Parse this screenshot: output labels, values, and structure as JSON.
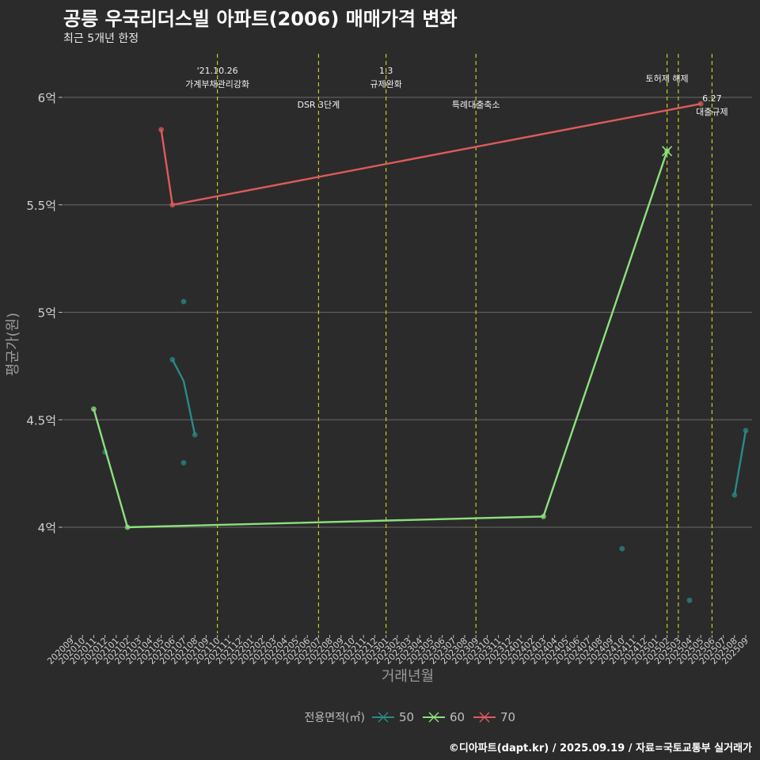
{
  "chart_data": {
    "type": "line",
    "title": "공릉 우국리더스빌 아파트(2006) 매매가격 변화",
    "subtitle": "최근 5개년 한정",
    "xlabel": "거래년월",
    "ylabel": "평균가(원)",
    "caption": "©디아파트(dapt.kr) / 2025.09.19 / 자료=국토교통부 실거래가",
    "legend_title": "전용면적(㎡)",
    "legend_position": "bottom",
    "y_range": [
      36500,
      62000
    ],
    "y_ticks": [
      {
        "value": 40000,
        "label": "4억"
      },
      {
        "value": 45000,
        "label": "4.5억"
      },
      {
        "value": 50000,
        "label": "5억"
      },
      {
        "value": 55000,
        "label": "5.5억"
      },
      {
        "value": 60000,
        "label": "6억"
      }
    ],
    "categories": [
      "202009",
      "202010",
      "202011",
      "202012",
      "202101",
      "202102",
      "202103",
      "202104",
      "202105",
      "202106",
      "202107",
      "202108",
      "202109",
      "202110",
      "202111",
      "202112",
      "202201",
      "202202",
      "202203",
      "202204",
      "202205",
      "202206",
      "202207",
      "202208",
      "202209",
      "202210",
      "202211",
      "202212",
      "202301",
      "202302",
      "202303",
      "202304",
      "202305",
      "202306",
      "202307",
      "202308",
      "202309",
      "202310",
      "202311",
      "202312",
      "202401",
      "202402",
      "202403",
      "202404",
      "202405",
      "202406",
      "202407",
      "202408",
      "202409",
      "202410",
      "202411",
      "202412",
      "202501",
      "202502",
      "202503",
      "202504",
      "202505",
      "202506",
      "202507",
      "202508",
      "202509"
    ],
    "series": [
      {
        "name": "50",
        "color": "#2a8a85",
        "lines": [
          [
            {
              "x": "202106",
              "y": 47800
            },
            {
              "x": "202107",
              "y": 46800
            },
            {
              "x": "202108",
              "y": 44300
            }
          ],
          [
            {
              "x": "202508",
              "y": 41500
            },
            {
              "x": "202509",
              "y": 44500
            }
          ]
        ],
        "points": [
          {
            "x": "202012",
            "y": 43500
          },
          {
            "x": "202106",
            "y": 47800
          },
          {
            "x": "202107",
            "y": 50500
          },
          {
            "x": "202107",
            "y": 43000
          },
          {
            "x": "202108",
            "y": 44300
          },
          {
            "x": "202410",
            "y": 39000
          },
          {
            "x": "202504",
            "y": 36600
          },
          {
            "x": "202508",
            "y": 41500
          },
          {
            "x": "202509",
            "y": 44500
          }
        ]
      },
      {
        "name": "60",
        "color": "#8de07e",
        "lines": [
          [
            {
              "x": "202011",
              "y": 45500
            },
            {
              "x": "202102",
              "y": 40000
            },
            {
              "x": "202403",
              "y": 40500
            },
            {
              "x": "202502",
              "y": 57500
            }
          ]
        ],
        "points": [
          {
            "x": "202011",
            "y": 45500
          },
          {
            "x": "202102",
            "y": 40000
          },
          {
            "x": "202403",
            "y": 40500
          },
          {
            "x": "202502",
            "y": 57500
          }
        ]
      },
      {
        "name": "70",
        "color": "#e05a5a",
        "lines": [
          [
            {
              "x": "202105",
              "y": 58500
            },
            {
              "x": "202106",
              "y": 55000
            },
            {
              "x": "202505",
              "y": 59700
            }
          ]
        ],
        "points": [
          {
            "x": "202105",
            "y": 58500
          },
          {
            "x": "202106",
            "y": 55000
          },
          {
            "x": "202505",
            "y": 59700
          }
        ]
      }
    ],
    "annotations": [
      {
        "x": "202110",
        "lines": [
          "'21.10.26",
          "가계부채관리강화"
        ],
        "row": "top"
      },
      {
        "x": "202207",
        "lines": [
          "DSR 3단계"
        ],
        "row": "low"
      },
      {
        "x": "202301",
        "lines": [
          "1.3",
          "규제완화"
        ],
        "row": "top"
      },
      {
        "x": "202309",
        "lines": [
          "특례대출축소"
        ],
        "row": "low"
      },
      {
        "x": "202502",
        "lines": [
          "토허제 해제"
        ],
        "row": "mid"
      },
      {
        "x": "202503",
        "lines": [],
        "row": "none"
      },
      {
        "x": "202506",
        "lines": [
          "6.27",
          "대출규제"
        ],
        "row": "right"
      }
    ]
  }
}
